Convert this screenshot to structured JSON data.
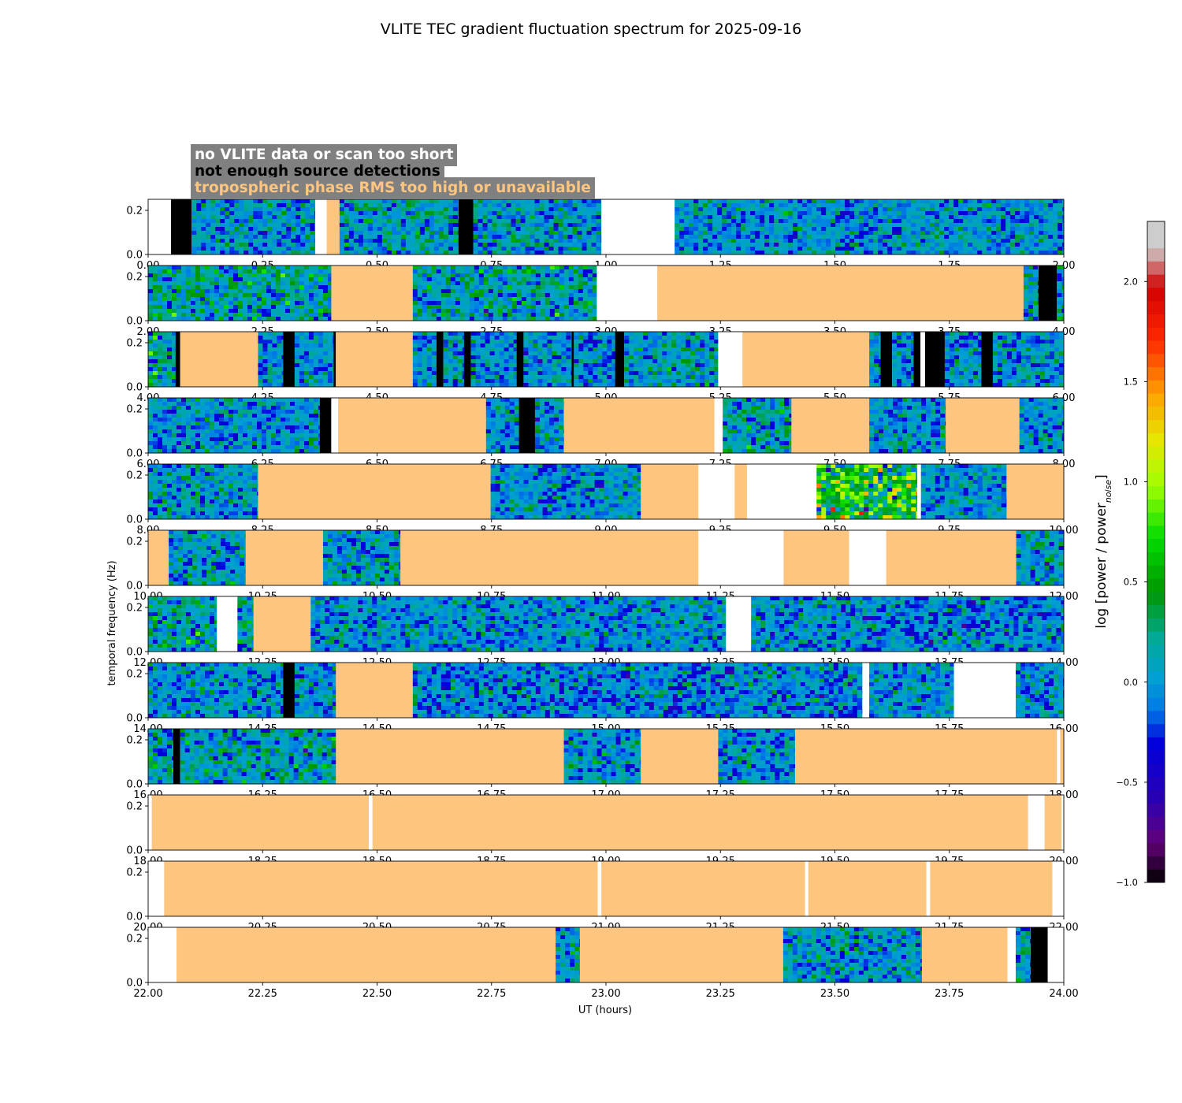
{
  "chart_data": {
    "type": "heatmap",
    "title": "VLITE TEC gradient fluctuation spectrum for 2025-09-16",
    "xlabel": "UT (hours)",
    "ylabel": "temporal frequency (Hz)",
    "ylim": [
      0,
      0.25
    ],
    "yticks": [
      "0.0",
      "0.2"
    ],
    "colorbar": {
      "label": "log [power / power",
      "label_sub": "noise",
      "label_close": "]",
      "range": [
        -1.0,
        2.3
      ],
      "ticks": [
        "−1.0",
        "−0.5",
        "0.0",
        "0.5",
        "1.0",
        "1.5",
        "2.0"
      ],
      "tick_values": [
        -1.0,
        -0.5,
        0.0,
        0.5,
        1.0,
        1.5,
        2.0
      ]
    },
    "legend": [
      {
        "label": "no VLITE data or scan too short",
        "color": "#ffffff",
        "category": "nodata"
      },
      {
        "label": "not enough source detections",
        "color": "#000000",
        "category": "nodet"
      },
      {
        "label": "tropospheric phase RMS too high or unavailable",
        "color": "#fec57f",
        "category": "tropo"
      }
    ],
    "panels": [
      {
        "start": 0,
        "end": 2,
        "xticks": [
          "0.00",
          "0.25",
          "0.50",
          "0.75",
          "1.00",
          "1.25",
          "1.50",
          "1.75",
          "2.00"
        ],
        "segments": [
          [
            0,
            0.05,
            "nodata"
          ],
          [
            0.05,
            0.095,
            "nodet"
          ],
          [
            0.095,
            0.365,
            "data",
            0.0
          ],
          [
            0.365,
            0.39,
            "nodata"
          ],
          [
            0.39,
            0.418,
            "tropo"
          ],
          [
            0.418,
            0.678,
            "data",
            0.05
          ],
          [
            0.678,
            0.71,
            "nodet"
          ],
          [
            0.71,
            0.99,
            "data",
            0.05
          ],
          [
            0.99,
            1.15,
            "nodata"
          ],
          [
            1.15,
            2,
            "data",
            0.0
          ]
        ]
      },
      {
        "start": 2,
        "end": 4,
        "xticks": [
          "2.00",
          "2.25",
          "2.50",
          "2.75",
          "3.00",
          "3.25",
          "3.50",
          "3.75",
          "4.00"
        ],
        "segments": [
          [
            2,
            2.4,
            "data",
            0.15
          ],
          [
            2.4,
            2.578,
            "tropo"
          ],
          [
            2.578,
            2.98,
            "data",
            0.1
          ],
          [
            2.98,
            3.112,
            "nodata"
          ],
          [
            3.112,
            3.912,
            "tropo"
          ],
          [
            3.912,
            3.945,
            "data",
            0.1
          ],
          [
            3.945,
            3.985,
            "nodet"
          ],
          [
            3.985,
            4,
            "data",
            0.1
          ]
        ]
      },
      {
        "start": 4,
        "end": 6,
        "xticks": [
          "4.00",
          "4.25",
          "4.50",
          "4.75",
          "5.00",
          "5.25",
          "5.50",
          "5.75",
          "6.00"
        ],
        "segments": [
          [
            4,
            4.06,
            "data",
            0.15
          ],
          [
            4.06,
            4.07,
            "nodet"
          ],
          [
            4.07,
            4.24,
            "tropo"
          ],
          [
            4.24,
            4.295,
            "data",
            0.0
          ],
          [
            4.295,
            4.32,
            "nodet"
          ],
          [
            4.32,
            4.405,
            "data",
            0.0
          ],
          [
            4.405,
            4.41,
            "nodet"
          ],
          [
            4.41,
            4.578,
            "tropo"
          ],
          [
            4.578,
            4.63,
            "data",
            0.0
          ],
          [
            4.63,
            4.645,
            "nodet"
          ],
          [
            4.645,
            4.69,
            "data",
            0.0
          ],
          [
            4.69,
            4.705,
            "nodet"
          ],
          [
            4.705,
            4.805,
            "data",
            0.0
          ],
          [
            4.805,
            4.82,
            "nodet"
          ],
          [
            4.82,
            4.925,
            "data",
            0.0
          ],
          [
            4.925,
            4.93,
            "nodet"
          ],
          [
            4.93,
            5.02,
            "data",
            0.0
          ],
          [
            5.02,
            5.04,
            "nodet"
          ],
          [
            5.04,
            5.245,
            "data",
            0.05
          ],
          [
            5.245,
            5.298,
            "nodata"
          ],
          [
            5.298,
            5.575,
            "tropo"
          ],
          [
            5.575,
            5.6,
            "data",
            0.0
          ],
          [
            5.6,
            5.625,
            "nodet"
          ],
          [
            5.625,
            5.672,
            "data",
            0.0
          ],
          [
            5.672,
            5.687,
            "nodet"
          ],
          [
            5.687,
            5.697,
            "nodata"
          ],
          [
            5.697,
            5.74,
            "nodet"
          ],
          [
            5.74,
            5.82,
            "data",
            0.0
          ],
          [
            5.82,
            5.845,
            "nodet"
          ],
          [
            5.845,
            6,
            "data",
            0.0
          ]
        ]
      },
      {
        "start": 6,
        "end": 8,
        "xticks": [
          "6.00",
          "6.25",
          "6.50",
          "6.75",
          "7.00",
          "7.25",
          "7.50",
          "7.75",
          "8.00"
        ],
        "segments": [
          [
            6,
            6.375,
            "data",
            0.0
          ],
          [
            6.375,
            6.4,
            "nodet"
          ],
          [
            6.4,
            6.415,
            "nodata"
          ],
          [
            6.415,
            6.738,
            "tropo"
          ],
          [
            6.738,
            6.81,
            "data",
            0.0
          ],
          [
            6.81,
            6.845,
            "nodet"
          ],
          [
            6.845,
            6.908,
            "data",
            0.0
          ],
          [
            6.908,
            7.237,
            "tropo"
          ],
          [
            7.237,
            7.255,
            "nodata"
          ],
          [
            7.255,
            7.405,
            "data",
            0.1
          ],
          [
            7.405,
            7.575,
            "tropo"
          ],
          [
            7.575,
            7.742,
            "data",
            0.0
          ],
          [
            7.742,
            7.903,
            "tropo"
          ],
          [
            7.903,
            8,
            "data",
            0.0
          ]
        ]
      },
      {
        "start": 8,
        "end": 10,
        "xticks": [
          "8.00",
          "8.25",
          "8.50",
          "8.75",
          "9.00",
          "9.25",
          "9.50",
          "9.75",
          "10.00"
        ],
        "segments": [
          [
            8,
            8.24,
            "data",
            0.05
          ],
          [
            8.24,
            8.748,
            "tropo"
          ],
          [
            8.748,
            9.076,
            "data",
            0.0
          ],
          [
            9.076,
            9.202,
            "tropo"
          ],
          [
            9.202,
            9.281,
            "nodata"
          ],
          [
            9.281,
            9.308,
            "tropo"
          ],
          [
            9.308,
            9.46,
            "nodata"
          ],
          [
            9.46,
            9.68,
            "data",
            0.55
          ],
          [
            9.68,
            9.688,
            "nodata"
          ],
          [
            9.688,
            9.875,
            "data",
            0.0
          ],
          [
            9.875,
            10,
            "tropo"
          ]
        ]
      },
      {
        "start": 10,
        "end": 12,
        "xticks": [
          "10.00",
          "10.25",
          "10.50",
          "10.75",
          "11.00",
          "11.25",
          "11.50",
          "11.75",
          "12.00"
        ],
        "segments": [
          [
            10,
            10.045,
            "tropo"
          ],
          [
            10.045,
            10.213,
            "data",
            0.05
          ],
          [
            10.213,
            10.382,
            "tropo"
          ],
          [
            10.382,
            10.551,
            "data",
            0.05
          ],
          [
            10.551,
            11.202,
            "tropo"
          ],
          [
            11.202,
            11.388,
            "nodata"
          ],
          [
            11.388,
            11.531,
            "tropo"
          ],
          [
            11.531,
            11.612,
            "nodata"
          ],
          [
            11.612,
            11.896,
            "tropo"
          ],
          [
            11.896,
            12,
            "data",
            0.05
          ]
        ]
      },
      {
        "start": 12,
        "end": 14,
        "xticks": [
          "12.00",
          "12.25",
          "12.50",
          "12.75",
          "13.00",
          "13.25",
          "13.50",
          "13.75",
          "14.00"
        ],
        "segments": [
          [
            12,
            12.15,
            "data",
            0.1
          ],
          [
            12.15,
            12.195,
            "nodata"
          ],
          [
            12.195,
            12.23,
            "data",
            0.1
          ],
          [
            12.23,
            12.355,
            "tropo"
          ],
          [
            12.355,
            13.262,
            "data",
            0.0
          ],
          [
            13.262,
            13.317,
            "nodata"
          ],
          [
            13.317,
            13.56,
            "data",
            0.0
          ],
          [
            13.56,
            14,
            "data",
            -0.05
          ]
        ]
      },
      {
        "start": 14,
        "end": 16,
        "xticks": [
          "14.00",
          "14.25",
          "14.50",
          "14.75",
          "15.00",
          "15.25",
          "15.50",
          "15.75",
          "16.00"
        ],
        "segments": [
          [
            14,
            14.295,
            "data",
            0.0
          ],
          [
            14.295,
            14.32,
            "nodet"
          ],
          [
            14.32,
            14.41,
            "data",
            0.0
          ],
          [
            14.41,
            14.578,
            "tropo"
          ],
          [
            14.578,
            15.56,
            "data",
            -0.05
          ],
          [
            15.56,
            15.575,
            "nodata"
          ],
          [
            15.575,
            15.76,
            "data",
            0.0
          ],
          [
            15.76,
            15.895,
            "nodata"
          ],
          [
            15.895,
            16,
            "data",
            0.0
          ]
        ]
      },
      {
        "start": 16,
        "end": 18,
        "xticks": [
          "16.00",
          "16.25",
          "16.50",
          "16.75",
          "17.00",
          "17.25",
          "17.50",
          "17.75",
          "18.00"
        ],
        "segments": [
          [
            16,
            16.055,
            "data",
            0.1
          ],
          [
            16.055,
            16.07,
            "nodet"
          ],
          [
            16.07,
            16.41,
            "data",
            0.1
          ],
          [
            16.41,
            16.908,
            "tropo"
          ],
          [
            16.908,
            17.076,
            "data",
            0.0
          ],
          [
            17.076,
            17.245,
            "tropo"
          ],
          [
            17.245,
            17.413,
            "data",
            0.0
          ],
          [
            17.413,
            17.985,
            "tropo"
          ],
          [
            17.985,
            17.992,
            "nodata"
          ],
          [
            17.992,
            18,
            "tropo"
          ]
        ]
      },
      {
        "start": 18,
        "end": 20,
        "xticks": [
          "18.00",
          "18.25",
          "18.50",
          "18.75",
          "19.00",
          "19.25",
          "19.50",
          "19.75",
          "20.00"
        ],
        "segments": [
          [
            18,
            18.008,
            "nodata"
          ],
          [
            18.008,
            18.482,
            "tropo"
          ],
          [
            18.482,
            18.49,
            "nodata"
          ],
          [
            18.49,
            19.922,
            "tropo"
          ],
          [
            19.922,
            19.958,
            "nodata"
          ],
          [
            19.958,
            19.995,
            "tropo"
          ],
          [
            19.995,
            20,
            "nodata"
          ]
        ]
      },
      {
        "start": 20,
        "end": 22,
        "xticks": [
          "20.00",
          "20.25",
          "20.50",
          "20.75",
          "21.00",
          "21.25",
          "21.50",
          "21.75",
          "22.00"
        ],
        "segments": [
          [
            20,
            20.035,
            "nodata"
          ],
          [
            20.035,
            20.982,
            "tropo"
          ],
          [
            20.982,
            20.99,
            "nodata"
          ],
          [
            20.99,
            21.435,
            "tropo"
          ],
          [
            21.435,
            21.442,
            "nodata"
          ],
          [
            21.442,
            21.7,
            "tropo"
          ],
          [
            21.7,
            21.708,
            "nodata"
          ],
          [
            21.708,
            21.975,
            "tropo"
          ],
          [
            21.975,
            22,
            "nodata"
          ]
        ]
      },
      {
        "start": 22,
        "end": 24,
        "xticks": [
          "22.00",
          "22.25",
          "22.50",
          "22.75",
          "23.00",
          "23.25",
          "23.50",
          "23.75",
          "24.00"
        ],
        "segments": [
          [
            22,
            22.062,
            "nodata"
          ],
          [
            22.062,
            22.89,
            "tropo"
          ],
          [
            22.89,
            22.943,
            "data",
            0.05
          ],
          [
            22.943,
            23.387,
            "tropo"
          ],
          [
            23.387,
            23.69,
            "data",
            0.05
          ],
          [
            23.69,
            23.877,
            "tropo"
          ],
          [
            23.877,
            23.895,
            "nodata"
          ],
          [
            23.895,
            23.928,
            "data",
            0.05
          ],
          [
            23.928,
            23.965,
            "nodet"
          ],
          [
            23.965,
            24,
            "nodata"
          ]
        ]
      }
    ]
  }
}
